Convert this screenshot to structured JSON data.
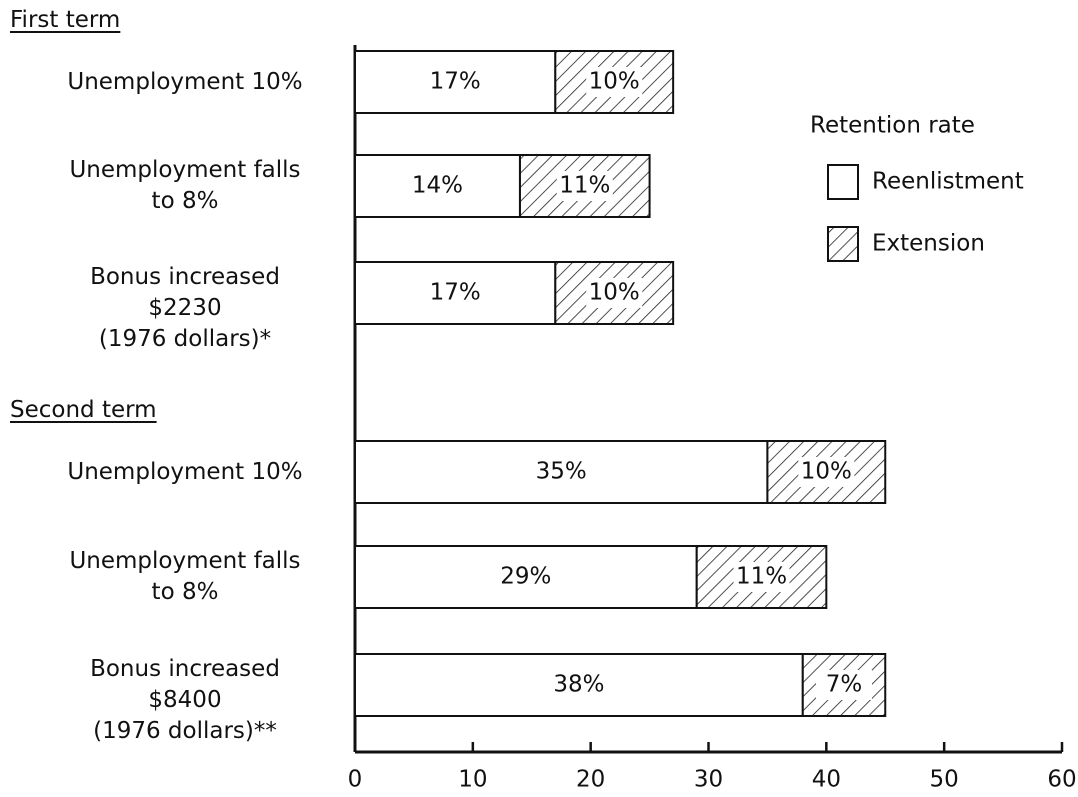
{
  "chart_data": {
    "type": "stacked-barh",
    "groups": [
      "First term",
      "Second term"
    ],
    "categories": [
      "Unemployment 10%",
      "Unemployment falls\nto 8%",
      "Bonus increased\n$2230\n(1976 dollars)*",
      "Unemployment 10%",
      "Unemployment falls\nto 8%",
      "Bonus increased\n$8400\n(1976 dollars)**"
    ],
    "series": [
      {
        "name": "Reenlistment",
        "color": "#ffffff",
        "pattern": "none",
        "values": [
          17,
          14,
          17,
          35,
          29,
          38
        ],
        "value_labels": [
          "17%",
          "14%",
          "17%",
          "35%",
          "29%",
          "38%"
        ]
      },
      {
        "name": "Extension",
        "color": "#ffffff",
        "pattern": "hatch",
        "values": [
          10,
          11,
          10,
          10,
          11,
          7
        ],
        "value_labels": [
          "10%",
          "11%",
          "10%",
          "10%",
          "11%",
          "7%"
        ]
      }
    ],
    "legend_title": "Retention rate",
    "legend": "upper right",
    "xlim": [
      0,
      60
    ],
    "xticks": [
      0,
      10,
      20,
      30,
      40,
      50,
      60
    ]
  }
}
